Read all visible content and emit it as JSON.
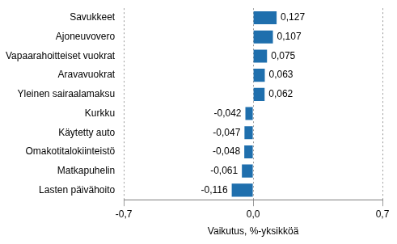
{
  "chart_data": {
    "type": "bar",
    "orientation": "horizontal",
    "categories": [
      "Savukkeet",
      "Ajoneuvovero",
      "Vapaarahoitteiset vuokrat",
      "Aravavuokrat",
      "Yleinen sairaalamaksu",
      "Kurkku",
      "Käytetty auto",
      "Omakotitalokiinteistö",
      "Matkapuhelin",
      "Lasten päivähoito"
    ],
    "values": [
      0.127,
      0.107,
      0.075,
      0.063,
      0.062,
      -0.042,
      -0.047,
      -0.048,
      -0.061,
      -0.116
    ],
    "value_labels": [
      "0,127",
      "0,107",
      "0,075",
      "0,063",
      "0,062",
      "-0,042",
      "-0,047",
      "-0,048",
      "-0,061",
      "-0,116"
    ],
    "data_labels": true,
    "color": "#1f6fad",
    "x_label": "Vaikutus, %-yksikköä",
    "xlim": [
      -0.7,
      0.7
    ],
    "xticks": [
      {
        "value": -0.7,
        "label": "-0,7"
      },
      {
        "value": 0,
        "label": "0,0"
      },
      {
        "value": 0.7,
        "label": "0,7"
      }
    ],
    "grid": true
  }
}
